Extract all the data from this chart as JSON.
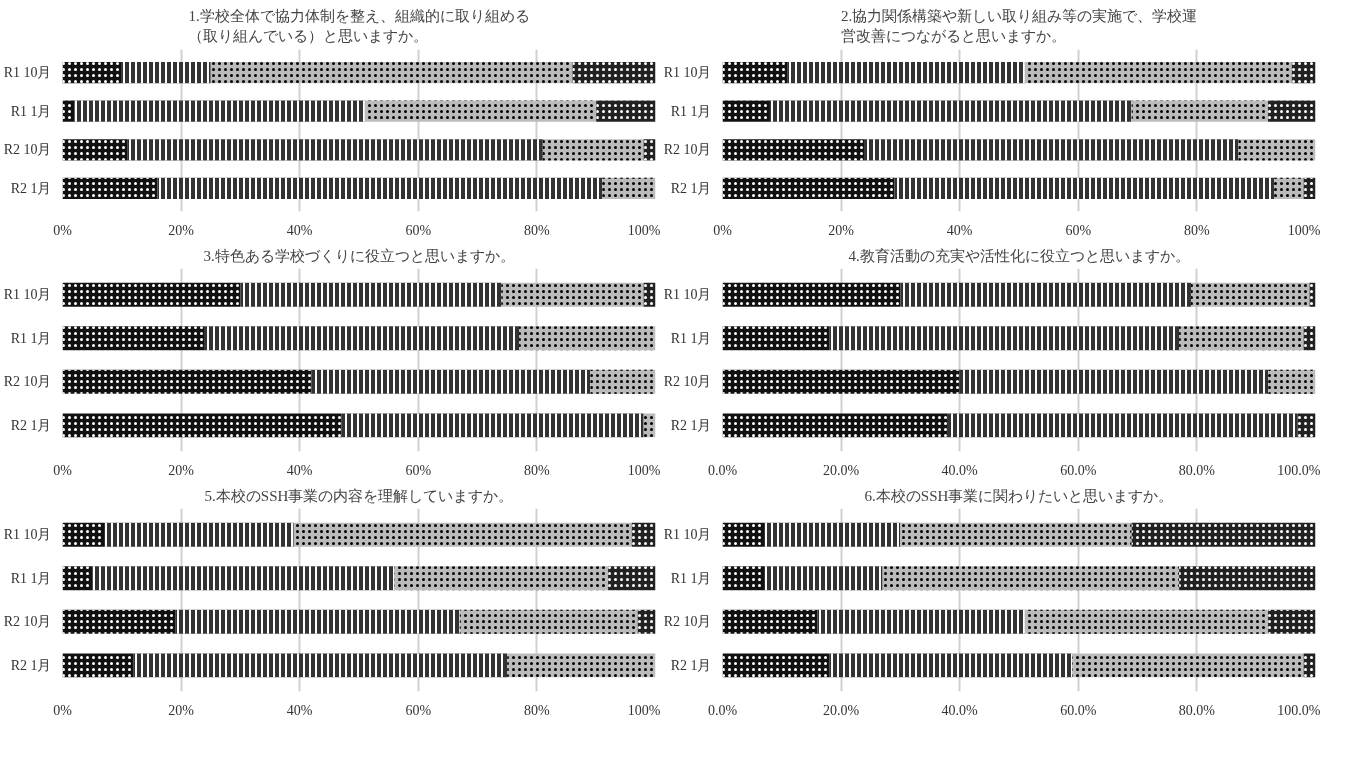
{
  "chart_data": [
    {
      "type": "bar",
      "orientation": "horizontal",
      "stacked": true,
      "title": "1.学校全体で協力体制を整え、組織的に取り組める（取り組んでいる）と思いますか。",
      "categories": [
        "R1 10月",
        "R1 1月",
        "R2 10月",
        "R2 1月"
      ],
      "series": [
        {
          "color": "#111111",
          "values": [
            10,
            2,
            11,
            16
          ]
        },
        {
          "color": "#333333",
          "values": [
            15,
            49,
            70,
            75
          ]
        },
        {
          "color": "#bbbbbb",
          "values": [
            61,
            39,
            17,
            9
          ]
        },
        {
          "color": "#222222",
          "values": [
            14,
            10,
            2,
            0
          ]
        }
      ],
      "xlim": [
        0,
        100
      ],
      "xticks": [
        {
          "value": 0,
          "label": "0%"
        },
        {
          "value": 20,
          "label": "20%"
        },
        {
          "value": 40,
          "label": "40%"
        },
        {
          "value": 60,
          "label": "60%"
        },
        {
          "value": 80,
          "label": "80%"
        },
        {
          "value": 100,
          "label": "100%"
        }
      ],
      "grid": "x"
    },
    {
      "type": "bar",
      "orientation": "horizontal",
      "stacked": true,
      "title": "2.協力関係構築や新しい取り組み等の実施で、学校運営改善につながると思いますか。",
      "categories": [
        "R1 10月",
        "R1 1月",
        "R2 10月",
        "R2 1月"
      ],
      "series": [
        {
          "color": "#111111",
          "values": [
            11,
            8,
            24,
            29
          ]
        },
        {
          "color": "#333333",
          "values": [
            40,
            61,
            63,
            64
          ]
        },
        {
          "color": "#bbbbbb",
          "values": [
            45,
            23,
            13,
            5
          ]
        },
        {
          "color": "#222222",
          "values": [
            4,
            8,
            0,
            2
          ]
        }
      ],
      "xlim": [
        0,
        100
      ],
      "xticks": [
        {
          "value": 0,
          "label": "0%"
        },
        {
          "value": 20,
          "label": "20%"
        },
        {
          "value": 40,
          "label": "40%"
        },
        {
          "value": 60,
          "label": "60%"
        },
        {
          "value": 80,
          "label": "80%"
        },
        {
          "value": 100,
          "label": "100%"
        }
      ],
      "grid": "x"
    },
    {
      "type": "bar",
      "orientation": "horizontal",
      "stacked": true,
      "title": "3.特色ある学校づくりに役立つと思いますか。",
      "categories": [
        "R1 10月",
        "R1 1月",
        "R2 10月",
        "R2 1月"
      ],
      "series": [
        {
          "color": "#111111",
          "values": [
            30,
            24,
            42,
            47
          ]
        },
        {
          "color": "#333333",
          "values": [
            44,
            53,
            47,
            51
          ]
        },
        {
          "color": "#bbbbbb",
          "values": [
            24,
            23,
            11,
            2
          ]
        },
        {
          "color": "#222222",
          "values": [
            2,
            0,
            0,
            0
          ]
        }
      ],
      "xlim": [
        0,
        100
      ],
      "xticks": [
        {
          "value": 0,
          "label": "0%"
        },
        {
          "value": 20,
          "label": "20%"
        },
        {
          "value": 40,
          "label": "40%"
        },
        {
          "value": 60,
          "label": "60%"
        },
        {
          "value": 80,
          "label": "80%"
        },
        {
          "value": 100,
          "label": "100%"
        }
      ],
      "grid": "x"
    },
    {
      "type": "bar",
      "orientation": "horizontal",
      "stacked": true,
      "title": "4.教育活動の充実や活性化に役立つと思いますか。",
      "categories": [
        "R1 10月",
        "R1 1月",
        "R2 10月",
        "R2 1月"
      ],
      "series": [
        {
          "color": "#111111",
          "values": [
            30,
            18,
            40,
            38
          ]
        },
        {
          "color": "#333333",
          "values": [
            49,
            59,
            52,
            59
          ]
        },
        {
          "color": "#bbbbbb",
          "values": [
            20,
            21,
            8,
            0
          ]
        },
        {
          "color": "#222222",
          "values": [
            1,
            2,
            0,
            3
          ]
        }
      ],
      "xlim": [
        0,
        100
      ],
      "xticks": [
        {
          "value": 0,
          "label": "0.0%"
        },
        {
          "value": 20,
          "label": "20.0%"
        },
        {
          "value": 40,
          "label": "40.0%"
        },
        {
          "value": 60,
          "label": "60.0%"
        },
        {
          "value": 80,
          "label": "80.0%"
        },
        {
          "value": 100,
          "label": "100.0%"
        }
      ],
      "grid": "x"
    },
    {
      "type": "bar",
      "orientation": "horizontal",
      "stacked": true,
      "title": "5.本校のSSH事業の内容を理解していますか。",
      "categories": [
        "R1 10月",
        "R1 1月",
        "R2 10月",
        "R2 1月"
      ],
      "series": [
        {
          "color": "#111111",
          "values": [
            7,
            5,
            19,
            12
          ]
        },
        {
          "color": "#333333",
          "values": [
            32,
            51,
            48,
            63
          ]
        },
        {
          "color": "#bbbbbb",
          "values": [
            57,
            36,
            30,
            25
          ]
        },
        {
          "color": "#222222",
          "values": [
            4,
            8,
            3,
            0
          ]
        }
      ],
      "xlim": [
        0,
        100
      ],
      "xticks": [
        {
          "value": 0,
          "label": "0%"
        },
        {
          "value": 20,
          "label": "20%"
        },
        {
          "value": 40,
          "label": "40%"
        },
        {
          "value": 60,
          "label": "60%"
        },
        {
          "value": 80,
          "label": "80%"
        },
        {
          "value": 100,
          "label": "100%"
        }
      ],
      "grid": "x"
    },
    {
      "type": "bar",
      "orientation": "horizontal",
      "stacked": true,
      "title": "6.本校のSSH事業に関わりたいと思いますか。",
      "categories": [
        "R1 10月",
        "R1 1月",
        "R2 10月",
        "R2 1月"
      ],
      "series": [
        {
          "color": "#111111",
          "values": [
            7,
            7,
            16,
            18
          ]
        },
        {
          "color": "#333333",
          "values": [
            23,
            20,
            35,
            41
          ]
        },
        {
          "color": "#bbbbbb",
          "values": [
            39,
            50,
            41,
            39
          ]
        },
        {
          "color": "#222222",
          "values": [
            31,
            23,
            8,
            2
          ]
        }
      ],
      "xlim": [
        0,
        100
      ],
      "xticks": [
        {
          "value": 0,
          "label": "0.0%"
        },
        {
          "value": 20,
          "label": "20.0%"
        },
        {
          "value": 40,
          "label": "40.0%"
        },
        {
          "value": 60,
          "label": "60.0%"
        },
        {
          "value": 80,
          "label": "80.0%"
        },
        {
          "value": 100,
          "label": "100.0%"
        }
      ],
      "grid": "x"
    }
  ]
}
